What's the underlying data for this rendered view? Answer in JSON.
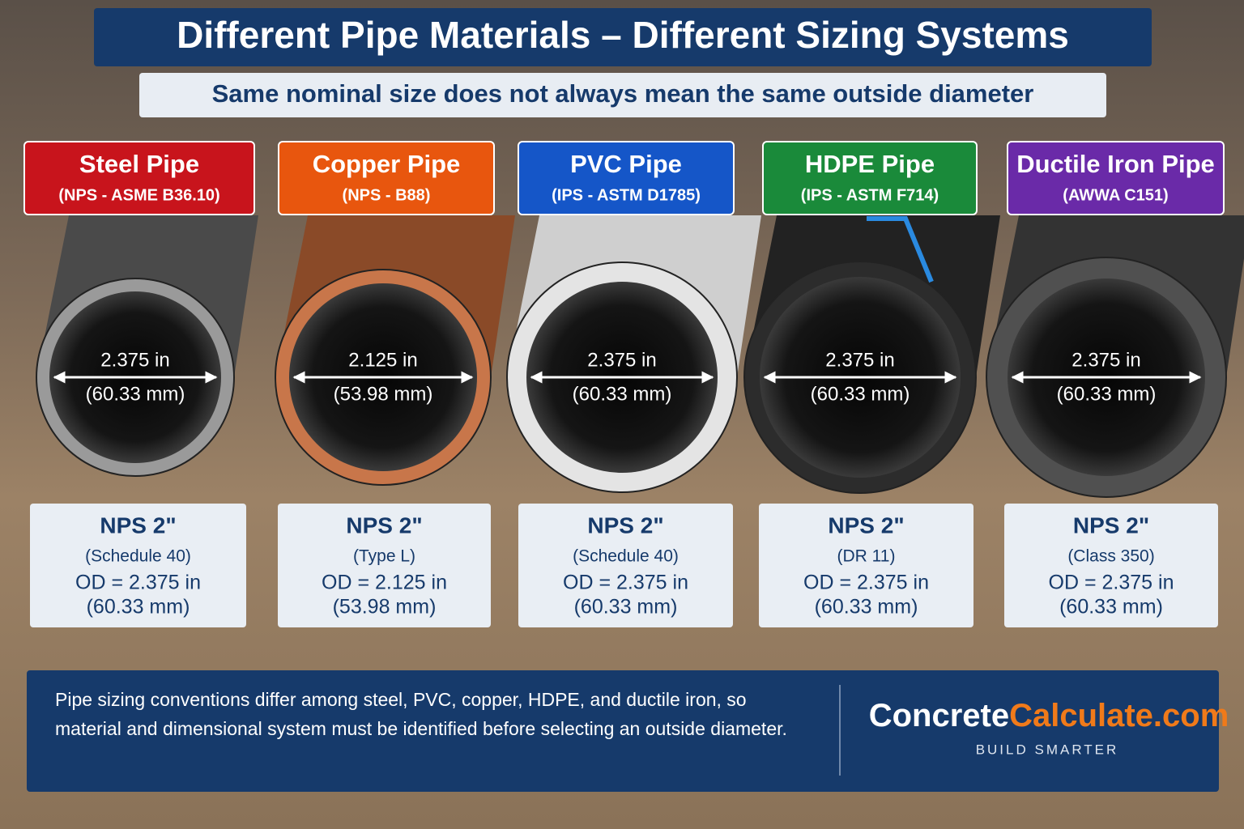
{
  "header": {
    "title": "Different Pipe Materials – Different Sizing Systems",
    "subtitle": "Same nominal size does not always mean the same outside diameter"
  },
  "pipes": [
    {
      "label": "Steel Pipe",
      "standard": "(NPS - ASME B36.10)",
      "color": "#c8141c",
      "diameter_in": "2.375 in",
      "diameter_mm": "(60.33 mm)",
      "nominal": "NPS 2\"",
      "spec": "(Schedule 40)",
      "od_in": "OD = 2.375 in",
      "od_mm": "(60.33 mm)"
    },
    {
      "label": "Copper Pipe",
      "standard": "(NPS - B88)",
      "color": "#e8560e",
      "diameter_in": "2.125 in",
      "diameter_mm": "(53.98 mm)",
      "nominal": "NPS 2\"",
      "spec": "(Type L)",
      "od_in": "OD = 2.125 in",
      "od_mm": "(53.98 mm)"
    },
    {
      "label": "PVC Pipe",
      "standard": "(IPS - ASTM D1785)",
      "color": "#1556c8",
      "diameter_in": "2.375 in",
      "diameter_mm": "(60.33 mm)",
      "nominal": "NPS 2\"",
      "spec": "(Schedule 40)",
      "od_in": "OD = 2.375 in",
      "od_mm": "(60.33 mm)"
    },
    {
      "label": "HDPE Pipe",
      "standard": "(IPS - ASTM F714)",
      "color": "#1a8a3a",
      "diameter_in": "2.375 in",
      "diameter_mm": "(60.33 mm)",
      "nominal": "NPS 2\"",
      "spec": "(DR 11)",
      "od_in": "OD = 2.375 in",
      "od_mm": "(60.33 mm)"
    },
    {
      "label": "Ductile Iron Pipe",
      "standard": "(AWWA C151)",
      "color": "#6a2aa8",
      "diameter_in": "2.375 in",
      "diameter_mm": "(60.33 mm)",
      "nominal": "NPS 2\"",
      "spec": "(Class 350)",
      "od_in": "OD = 2.375 in",
      "od_mm": "(60.33 mm)"
    }
  ],
  "footer": {
    "text": "Pipe sizing conventions differ among steel, PVC, copper, HDPE, and ductile iron, so material and dimensional system must be identified before selecting an outside diameter.",
    "brand_first": "Concrete",
    "brand_second": "Calculate.com",
    "tagline": "BUILD SMARTER"
  }
}
